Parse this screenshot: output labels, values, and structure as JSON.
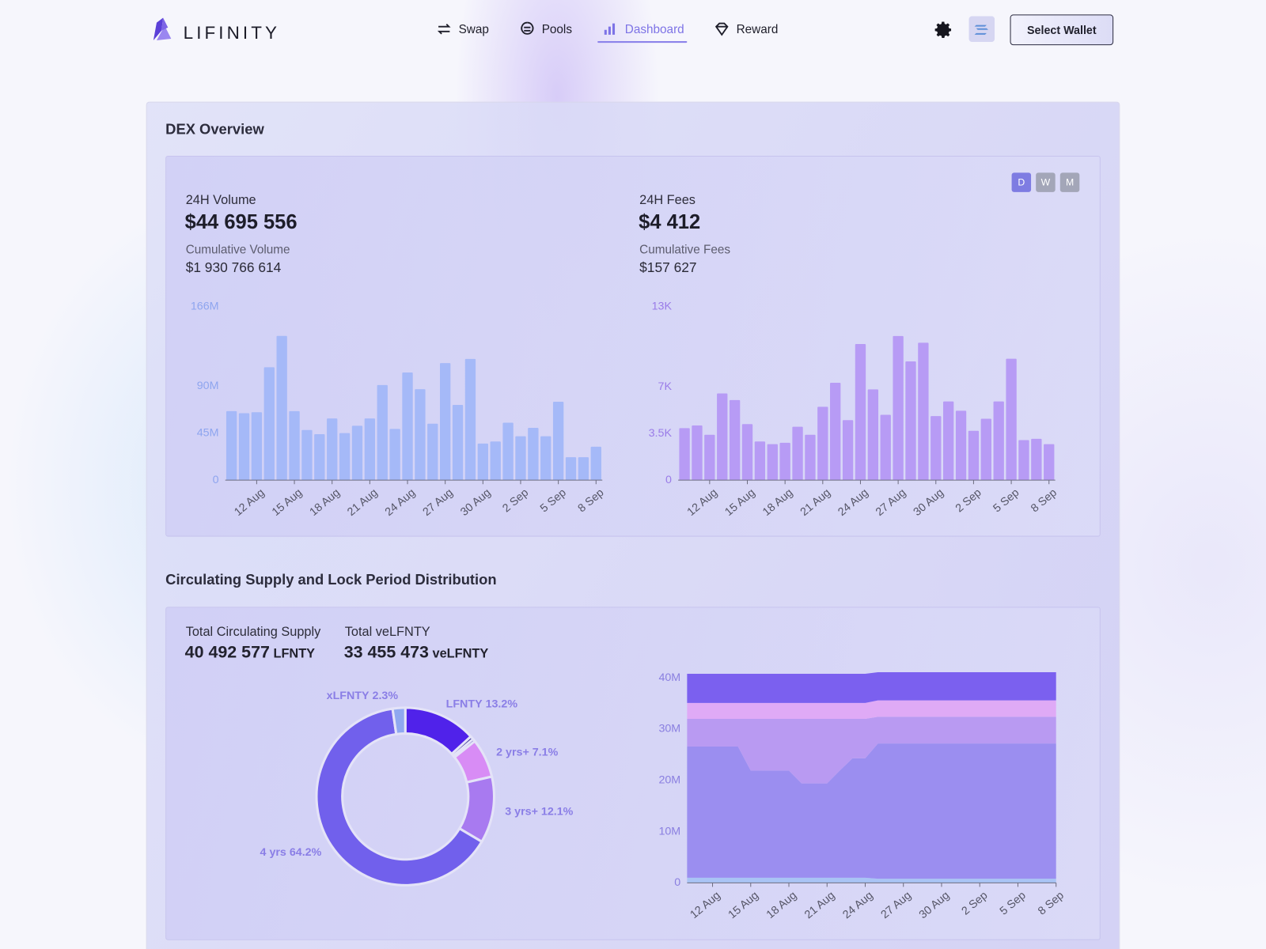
{
  "header": {
    "logo": "LIFINITY",
    "nav": [
      "Swap",
      "Pools",
      "Dashboard",
      "Reward"
    ],
    "active_nav_index": 2,
    "wallet_button": "Select Wallet"
  },
  "dex_overview": {
    "title": "DEX Overview",
    "period_options": [
      "D",
      "W",
      "M"
    ],
    "selected_period_index": 0,
    "volume": {
      "label": "24H Volume",
      "value": "$44 695 556",
      "cumulative_label": "Cumulative Volume",
      "cumulative_value": "$1 930 766 614"
    },
    "fees": {
      "label": "24H Fees",
      "value": "$4 412",
      "cumulative_label": "Cumulative Fees",
      "cumulative_value": "$157 627"
    }
  },
  "supply": {
    "title": "Circulating Supply and Lock Period Distribution",
    "circulating": {
      "label": "Total Circulating Supply",
      "value": "40 492 577",
      "unit": "LFNTY"
    },
    "ve": {
      "label": "Total veLFNTY",
      "value": "33 455 473",
      "unit": "veLFNTY"
    }
  },
  "chart_data": [
    {
      "type": "bar",
      "categories": [
        null,
        null,
        "12 Aug",
        null,
        null,
        "15 Aug",
        null,
        null,
        "18 Aug",
        null,
        null,
        "21 Aug",
        null,
        null,
        "24 Aug",
        null,
        null,
        "27 Aug",
        null,
        null,
        "30 Aug",
        null,
        null,
        "2 Sep",
        null,
        null,
        "5 Sep",
        null,
        null,
        "8 Sep"
      ],
      "values": [
        66000000,
        64000000,
        65000000,
        108000000,
        138000000,
        66000000,
        48000000,
        44000000,
        59000000,
        45000000,
        52000000,
        59000000,
        91000000,
        49000000,
        103000000,
        87000000,
        54000000,
        112000000,
        72000000,
        116000000,
        35000000,
        37000000,
        55000000,
        42000000,
        50000000,
        42000000,
        75000000,
        22000000,
        22000000,
        32000000
      ],
      "color": "#a5b9f8",
      "tick_color": "#8ea5ef",
      "ylim": [
        0,
        166000000
      ],
      "yticks": [
        0,
        {
          "value": 45000000,
          "label": "45M"
        },
        {
          "value": 90000000,
          "label": "90M"
        },
        {
          "value": 166000000,
          "label": "166M"
        }
      ]
    },
    {
      "type": "bar",
      "categories": [
        null,
        null,
        "12 Aug",
        null,
        null,
        "15 Aug",
        null,
        null,
        "18 Aug",
        null,
        null,
        "21 Aug",
        null,
        null,
        "24 Aug",
        null,
        null,
        "27 Aug",
        null,
        null,
        "30 Aug",
        null,
        null,
        "2 Sep",
        null,
        null,
        "5 Sep",
        null,
        null,
        "8 Sep"
      ],
      "values": [
        3900,
        4100,
        3400,
        6500,
        6000,
        4200,
        2900,
        2700,
        2800,
        4000,
        3400,
        5500,
        7300,
        4500,
        10200,
        6800,
        4900,
        10800,
        8900,
        10300,
        4800,
        5900,
        5200,
        3700,
        4600,
        5900,
        9100,
        3000,
        3100,
        2700
      ],
      "color": "#b79bf5",
      "tick_color": "#9a7ce8",
      "ylim": [
        0,
        13000
      ],
      "yticks": [
        0,
        {
          "value": 3500,
          "label": "3.5K"
        },
        {
          "value": 7000,
          "label": "7K"
        },
        {
          "value": 13000,
          "label": "13K"
        }
      ]
    },
    {
      "type": "pie",
      "categories": [
        "LFNTY",
        null,
        null,
        "2 yrs+",
        "3 yrs+",
        "4 yrs",
        "xLFNTY"
      ],
      "values": [
        13.2,
        0.6,
        0.5,
        7.1,
        12.1,
        64.2,
        2.3
      ],
      "value_labels": [
        "13.2%",
        null,
        null,
        "7.1%",
        "12.1%",
        "64.2%",
        "2.3%"
      ],
      "colors": [
        "#5022ea",
        "#2e2a8c",
        "#3b37a8",
        "#d88cf5",
        "#a87af0",
        "#7160ec",
        "#8fa8f0"
      ],
      "label_color": "#8a7ee6"
    },
    {
      "type": "area",
      "stacked": true,
      "categories": [
        null,
        null,
        "12 Aug",
        null,
        null,
        "15 Aug",
        null,
        null,
        "18 Aug",
        null,
        null,
        "21 Aug",
        null,
        null,
        "24 Aug",
        null,
        null,
        "27 Aug",
        null,
        null,
        "30 Aug",
        null,
        null,
        "2 Sep",
        null,
        null,
        "5 Sep",
        null,
        null,
        "8 Sep"
      ],
      "tick_color": "#8a7fe0",
      "ylim": [
        0,
        41100000
      ],
      "yticks": [
        0,
        {
          "value": 10000000,
          "label": "10M"
        },
        {
          "value": 20000000,
          "label": "20M"
        },
        {
          "value": 30000000,
          "label": "30M"
        },
        {
          "value": 40000000,
          "label": "40M"
        }
      ],
      "series": [
        {
          "color": "#a9c4f5",
          "values": [
            1000000,
            1000000,
            1000000,
            1000000,
            1000000,
            1000000,
            1000000,
            1000000,
            1000000,
            1000000,
            1000000,
            1000000,
            1000000,
            1000000,
            1000000,
            800000,
            800000,
            800000,
            800000,
            800000,
            800000,
            800000,
            800000,
            800000,
            800000,
            800000,
            800000,
            800000,
            800000,
            800000
          ]
        },
        {
          "color": "#9b8ef0",
          "values": [
            25600000,
            25600000,
            25600000,
            25600000,
            25600000,
            20900000,
            20900000,
            20900000,
            20900000,
            18400000,
            18400000,
            18400000,
            20900000,
            23300000,
            23300000,
            26400000,
            26400000,
            26400000,
            26400000,
            26400000,
            26400000,
            26400000,
            26400000,
            26400000,
            26400000,
            26400000,
            26400000,
            26400000,
            26400000,
            26400000
          ]
        },
        {
          "color": "#b99af2",
          "values": [
            5400000,
            5400000,
            5400000,
            5400000,
            5400000,
            10100000,
            10100000,
            10100000,
            10100000,
            12600000,
            12600000,
            12600000,
            10100000,
            7700000,
            7700000,
            5200000,
            5200000,
            5200000,
            5200000,
            5200000,
            5200000,
            5200000,
            5200000,
            5200000,
            5200000,
            5200000,
            5200000,
            5200000,
            5200000,
            5200000
          ]
        },
        {
          "color": "#dfaaf6",
          "values": [
            3100000,
            3100000,
            3100000,
            3100000,
            3100000,
            3100000,
            3100000,
            3100000,
            3100000,
            3100000,
            3100000,
            3100000,
            3100000,
            3100000,
            3100000,
            3200000,
            3200000,
            3200000,
            3200000,
            3200000,
            3200000,
            3200000,
            3200000,
            3200000,
            3200000,
            3200000,
            3200000,
            3200000,
            3200000,
            3200000
          ]
        },
        {
          "color": "#7b60ef",
          "values": [
            5700000,
            5700000,
            5700000,
            5700000,
            5700000,
            5700000,
            5700000,
            5700000,
            5700000,
            5700000,
            5700000,
            5700000,
            5700000,
            5700000,
            5700000,
            5500000,
            5500000,
            5500000,
            5500000,
            5500000,
            5500000,
            5500000,
            5500000,
            5500000,
            5500000,
            5500000,
            5500000,
            5500000,
            5500000,
            5500000
          ]
        }
      ]
    }
  ]
}
